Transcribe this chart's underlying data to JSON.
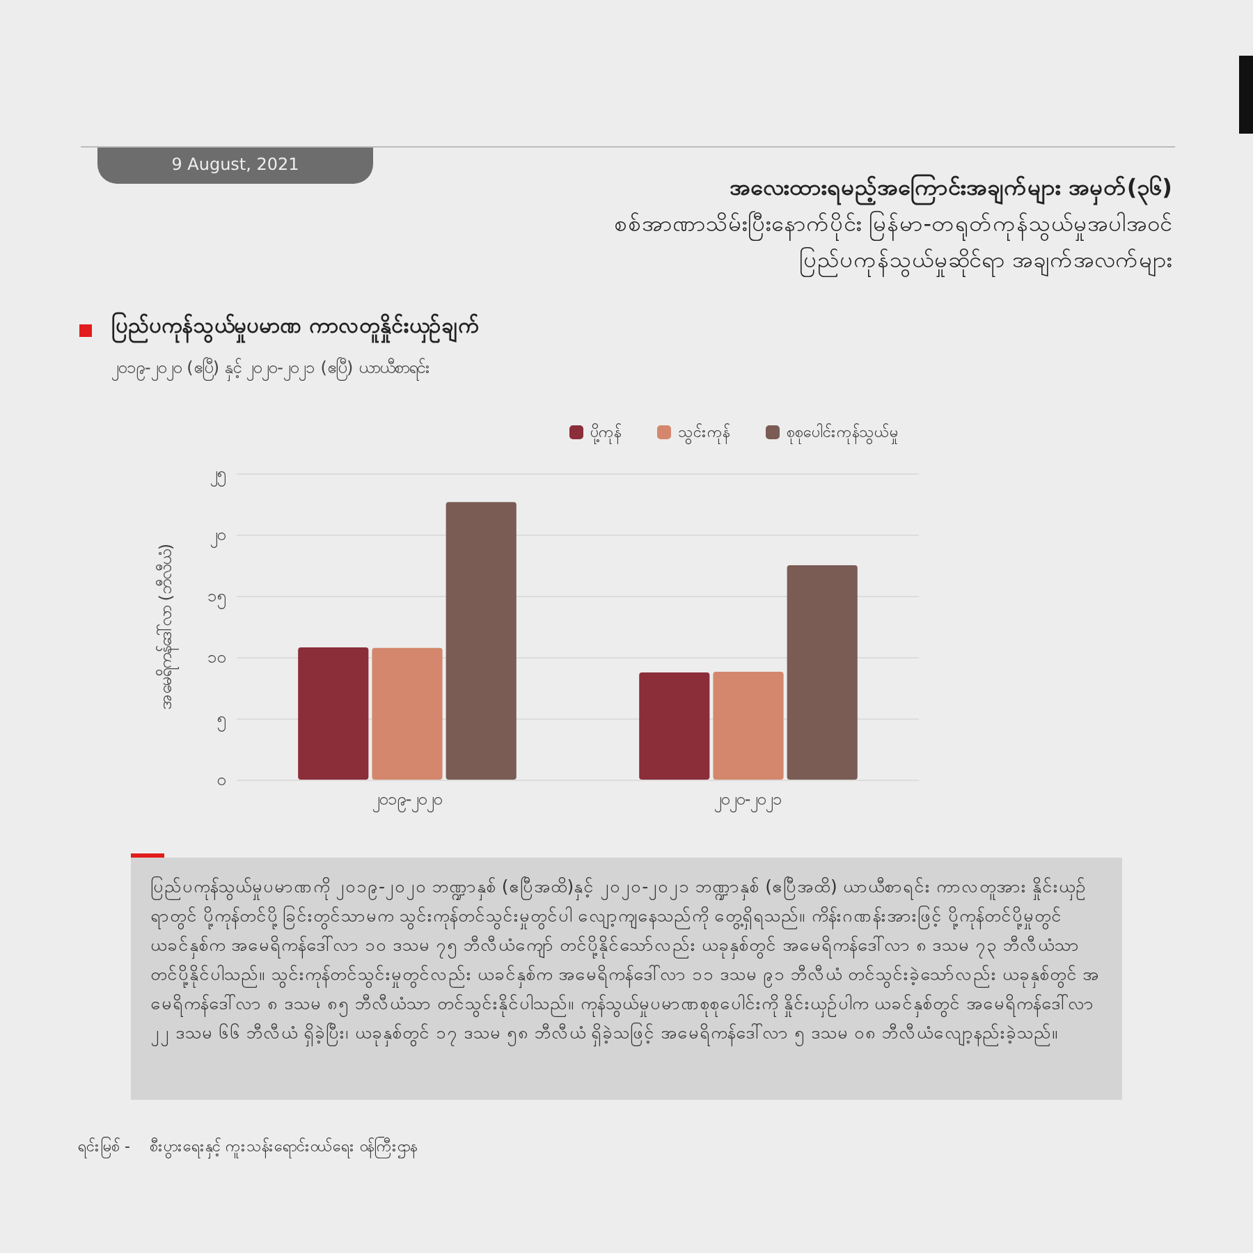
{
  "chart_data": {
    "type": "bar",
    "title": "ပြည်ပကုန်သွယ်မှုပမာဏ ကာလတူနှိုင်းယှဉ်ချက်",
    "subtitle": "၂၀၁၉-၂၀၂၀ (ဧပြီ) နှင့် ၂၀၂၀-၂၀၂၁ (ဧပြီ) ယာယီစာရင်း",
    "ylabel": "အမေရိကန်ဒေါ်လာ (ဘီလီယံ)",
    "annotations": [
      "9 August, 2021",
      "အလေးထားရမည့်အကြောင်းအချက်များ အမှတ်(၃၆)",
      "စစ်အာဏာသိမ်းပြီးနောက်ပိုင်း မြန်မာ-တရုတ်ကုန်သွယ်မှုအပါအဝင်",
      "ပြည်ပကုန်သွယ်မှုဆိုင်ရာ အချက်အလက်များ",
      "ပြည်ပကုန်သွယ်မှုပမာဏကို ၂၀၁၉-၂၀၂၀ ဘဏ္ဍာနှစ် (ဧပြီအထိ)နှင့် ၂၀၂၀-၂၀၂၁ ဘဏ္ဍာနှစ် (ဧပြီအထိ) ယာယီစာရင်း ကာလတူအား နှိုင်းယှဉ်ရာတွင် ပို့ကုန်တင်ပို့ခြင်းတွင်သာမက သွင်းကုန်တင်သွင်းမှုတွင်ပါ လျော့ကျနေသည်ကို တွေ့ရှိရသည်။ ကိန်းဂဏန်းအားဖြင့် ပို့ကုန်တင်ပို့မှုတွင် ယခင်နှစ်က အမေရိကန်ဒေါ်လာ ၁၀ ဒသမ ၇၅ ဘီလီယံကျော် တင်ပို့နိုင်သော်လည်း ယခုနှစ်တွင် အမေရိကန်ဒေါ်လာ ၈ ဒသမ ၇၃ ဘီလီယံသာ တင်ပို့နိုင်ပါသည်။ သွင်းကုန်တင်သွင်းမှုတွင်လည်း ယခင်နှစ်က အမေရိကန်ဒေါ်လာ ၁၁ ဒသမ ၉၁ ဘီလီယံ တင်သွင်းခဲ့သော်လည်း ယခုနှစ်တွင် အမေရိကန်ဒေါ်လာ ၈ ဒသမ ၈၅ ဘီလီယံသာ တင်သွင်းနိုင်ပါသည်။ ကုန်သွယ်မှုပမာဏစုစုပေါင်းကို နှိုင်းယှဉ်ပါက ယခင်နှစ်တွင် အမေရိကန်ဒေါ်လာ ၂၂ ဒသမ ၆၆ ဘီလီယံ ရှိခဲ့ပြီး၊ ယခုနှစ်တွင် ၁၇ ဒသမ ၅၈ ဘီလီယံ ရှိခဲ့သဖြင့် အမေရိကန်ဒေါ်လာ ၅ ဒသမ ၀၈ ဘီလီယံလျော့နည်းခဲ့သည်။",
      "ရင်းမြစ် -    စီးပွားရေးနှင့် ကူးသန်းရောင်းဝယ်ရေး ဝန်ကြီးဌာန"
    ],
    "categories": [
      "၂၀၁၉-၂၀၂၀",
      "၂၀၂၀-၂၀၂၁"
    ],
    "series": [
      {
        "name": "ပို့ကုန်",
        "color": "#8b2e3a",
        "values": [
          10.8,
          8.75
        ]
      },
      {
        "name": "သွင်းကုန်",
        "color": "#d4876c",
        "values": [
          10.75,
          8.8
        ]
      },
      {
        "name": "စုစုပေါင်းကုန်သွယ်မှု",
        "color": "#7a5c55",
        "values": [
          22.65,
          17.5
        ]
      }
    ],
    "ylim": [
      0,
      25
    ],
    "yticks": [
      {
        "value": 0,
        "label": "၀"
      },
      {
        "value": 5,
        "label": "၅"
      },
      {
        "value": 10,
        "label": "၁၀"
      },
      {
        "value": 15,
        "label": "၁၅"
      },
      {
        "value": 20,
        "label": "၂၀"
      },
      {
        "value": 25,
        "label": "၂၅"
      }
    ],
    "grid": "y",
    "legend": "top"
  }
}
